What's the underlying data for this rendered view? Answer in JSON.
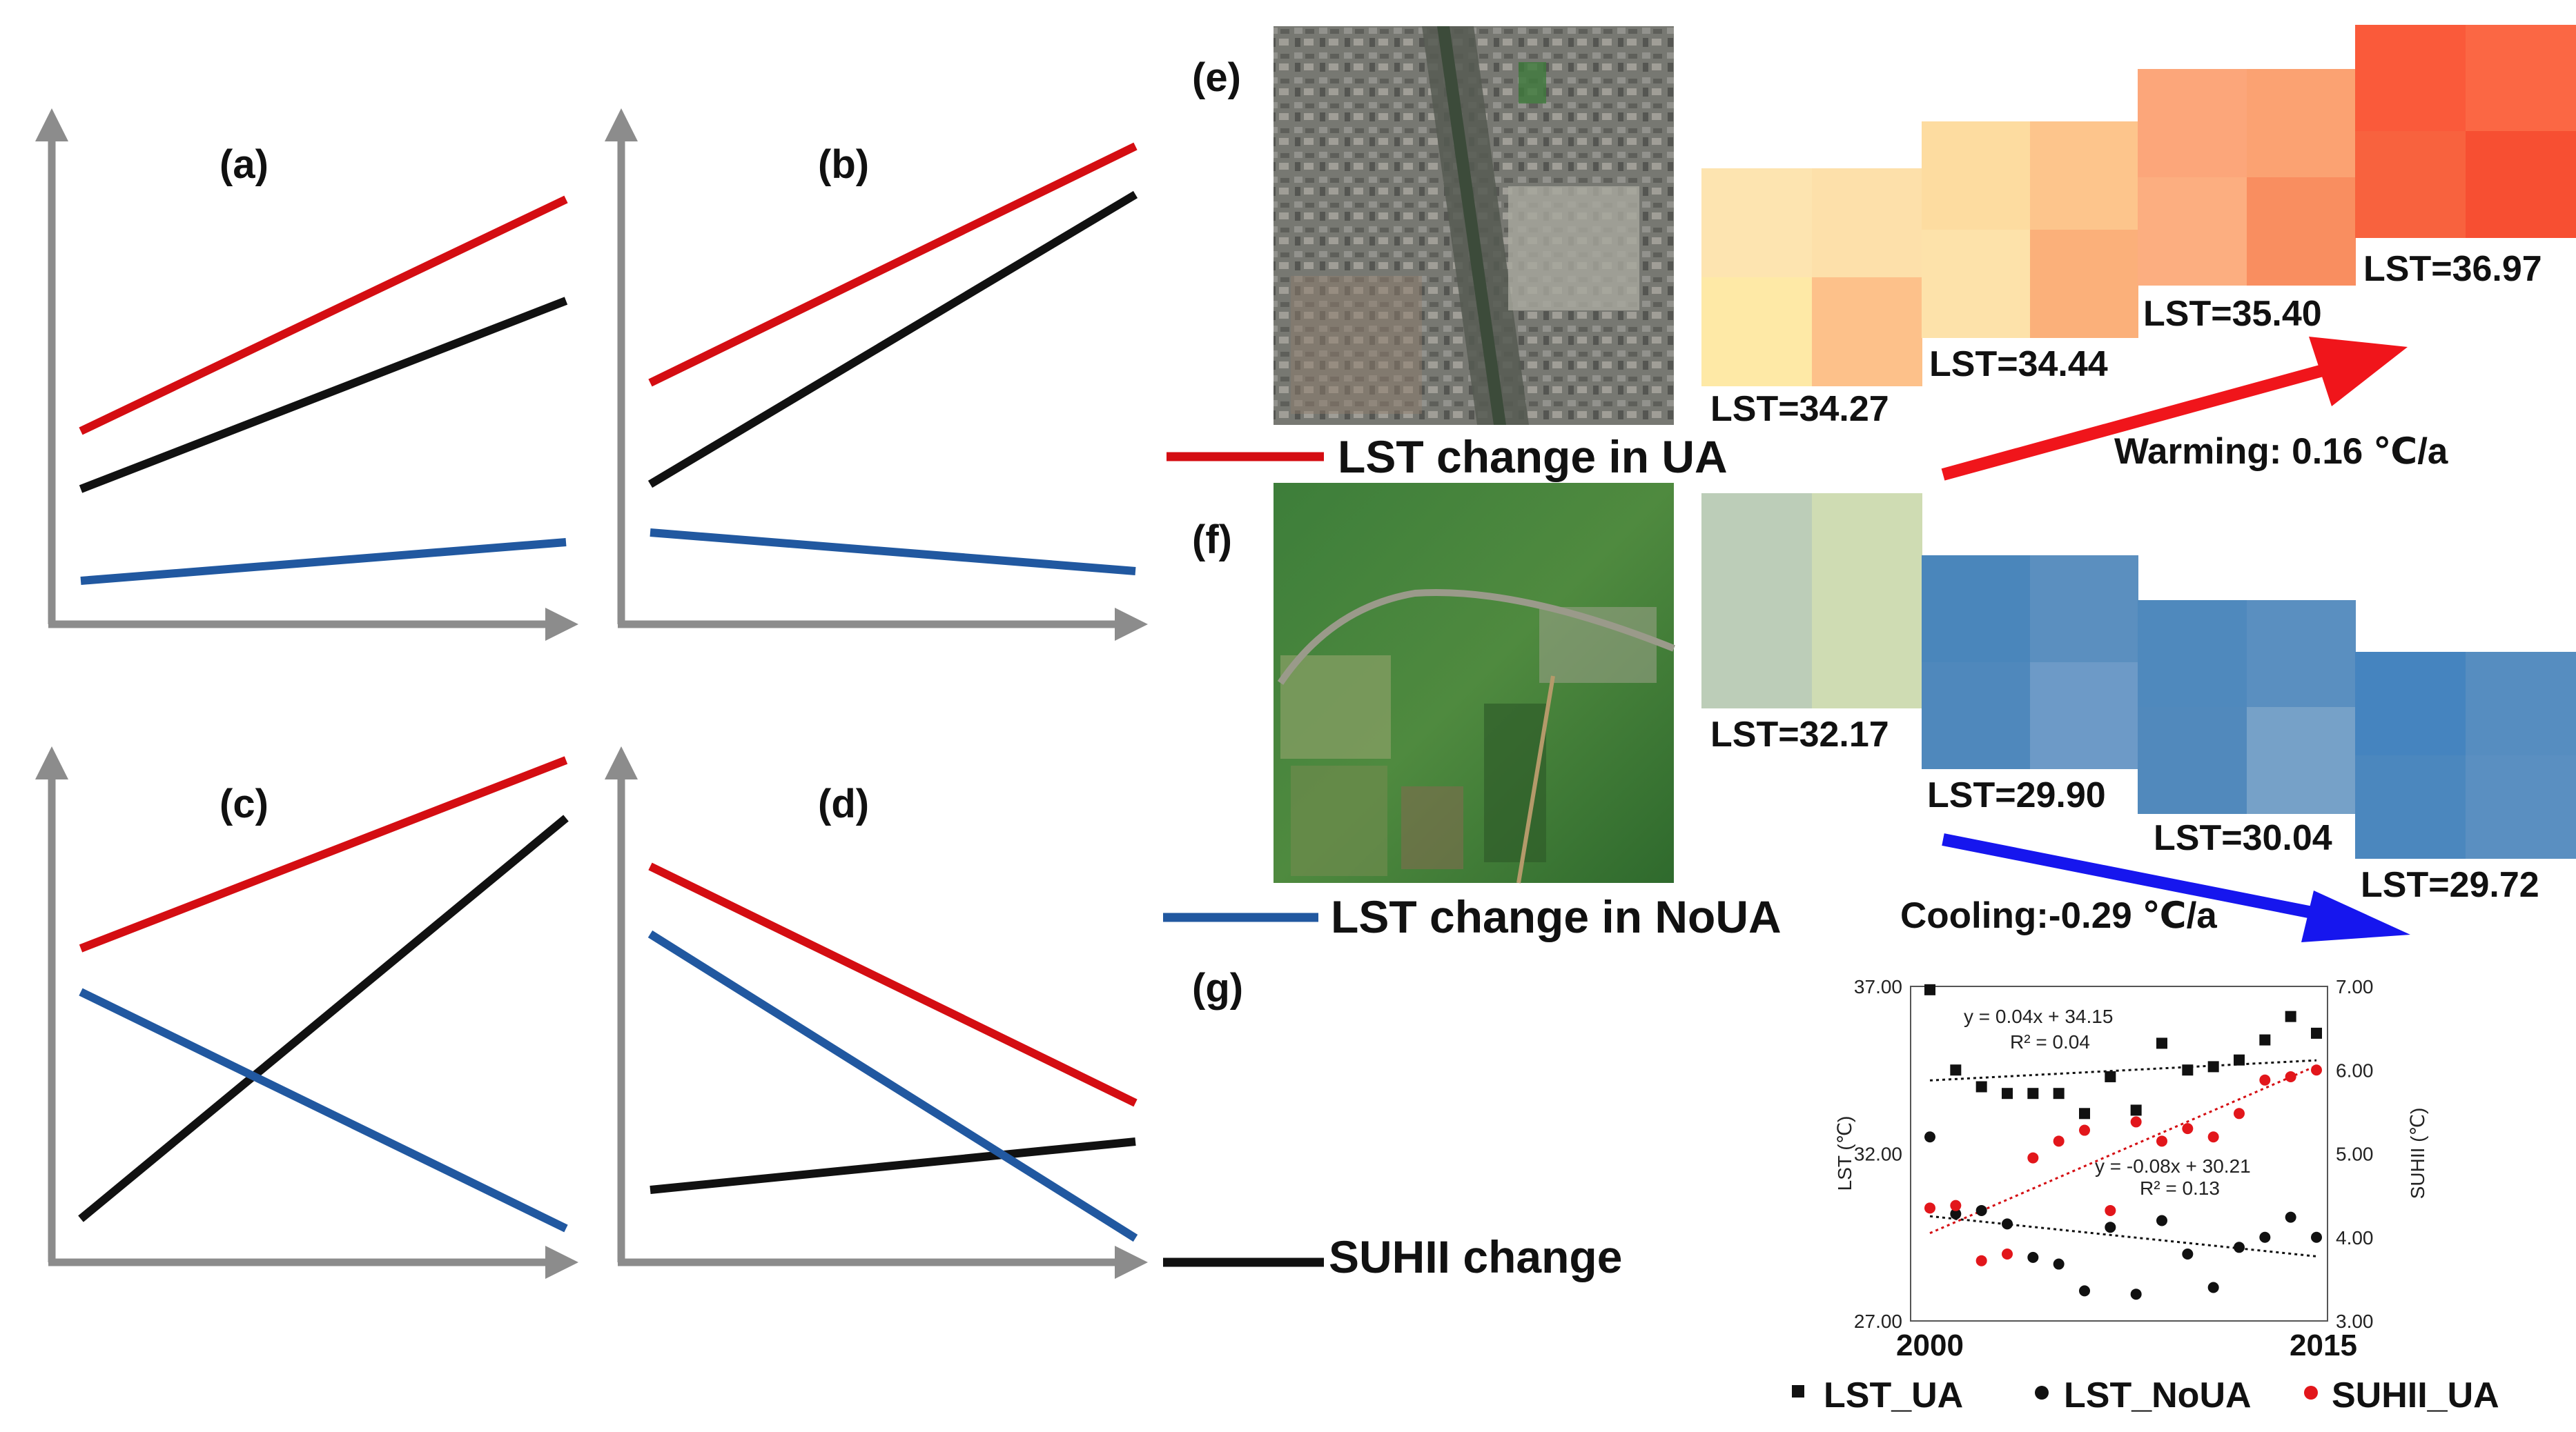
{
  "panels": {
    "a": {
      "label": "(a)"
    },
    "b": {
      "label": "(b)"
    },
    "c": {
      "label": "(c)"
    },
    "d": {
      "label": "(d)"
    },
    "e": {
      "label": "(e)"
    },
    "f": {
      "label": "(f)"
    },
    "g": {
      "label": "(g)"
    }
  },
  "colors": {
    "ua": "#d40d12",
    "suhii": "#111111",
    "noua": "#2158a0",
    "axis": "#8c8c8c",
    "warm_arrow": "#f0151b",
    "cool_arrow": "#1616ee"
  },
  "legend": {
    "ua": "LST change in UA",
    "noua": "LST change in NoUA",
    "suhii": "SUHII change"
  },
  "ua_series": {
    "lst_labels": [
      "LST=34.27",
      "LST=34.44",
      "LST=35.40",
      "LST=36.97"
    ],
    "trend_label": "Warming: 0.16 ℃/a"
  },
  "noua_series": {
    "lst_labels": [
      "LST=32.17",
      "LST=29.90",
      "LST=30.04",
      "LST=29.72"
    ],
    "trend_label": "Cooling:-0.29 ℃/a"
  },
  "chart_data": [
    {
      "type": "line",
      "title": "(a)",
      "x_range": [
        0,
        1
      ],
      "y_range": [
        0,
        1
      ],
      "series": [
        {
          "name": "LST change in UA",
          "x": [
            0,
            1
          ],
          "y": [
            0.4,
            0.88
          ]
        },
        {
          "name": "SUHII change",
          "x": [
            0,
            1
          ],
          "y": [
            0.28,
            0.67
          ]
        },
        {
          "name": "LST change in NoUA",
          "x": [
            0,
            1
          ],
          "y": [
            0.09,
            0.17
          ]
        }
      ]
    },
    {
      "type": "line",
      "title": "(b)",
      "x_range": [
        0,
        1
      ],
      "y_range": [
        0,
        1
      ],
      "series": [
        {
          "name": "LST change in UA",
          "x": [
            0,
            1
          ],
          "y": [
            0.5,
            0.99
          ]
        },
        {
          "name": "SUHII change",
          "x": [
            0,
            1
          ],
          "y": [
            0.29,
            0.89
          ]
        },
        {
          "name": "LST change in NoUA",
          "x": [
            0,
            1
          ],
          "y": [
            0.19,
            0.11
          ]
        }
      ]
    },
    {
      "type": "line",
      "title": "(c)",
      "x_range": [
        0,
        1
      ],
      "y_range": [
        0,
        1
      ],
      "series": [
        {
          "name": "LST change in UA",
          "x": [
            0,
            1
          ],
          "y": [
            0.65,
            1.04
          ]
        },
        {
          "name": "SUHII change",
          "x": [
            0,
            1
          ],
          "y": [
            0.09,
            0.92
          ]
        },
        {
          "name": "LST change in NoUA",
          "x": [
            0,
            1
          ],
          "y": [
            0.56,
            0.07
          ]
        }
      ]
    },
    {
      "type": "line",
      "title": "(d)",
      "x_range": [
        0,
        1
      ],
      "y_range": [
        0,
        1
      ],
      "series": [
        {
          "name": "LST change in UA",
          "x": [
            0,
            1
          ],
          "y": [
            0.82,
            0.33
          ]
        },
        {
          "name": "SUHII change",
          "x": [
            0,
            1
          ],
          "y": [
            0.15,
            0.25
          ]
        },
        {
          "name": "LST change in NoUA",
          "x": [
            0,
            1
          ],
          "y": [
            0.68,
            0.05
          ]
        }
      ]
    },
    {
      "type": "scatter",
      "title": "(g)",
      "ylabel": "LST (℃)",
      "y2label": "SUHII (℃)",
      "ylim": [
        27,
        37
      ],
      "y2lim": [
        3,
        7
      ],
      "xlim": [
        2000,
        2015
      ],
      "y_ticks": [
        "37.00",
        "32.00",
        "27.00"
      ],
      "y2_ticks": [
        "7.00",
        "6.00",
        "5.00",
        "4.00",
        "3.00"
      ],
      "x_tick_labels": [
        "2000",
        "2015"
      ],
      "series": [
        {
          "name": "LST_UA",
          "marker": "square",
          "x": [
            2000,
            2001,
            2002,
            2003,
            2004,
            2005,
            2006,
            2007,
            2008,
            2009,
            2010,
            2011,
            2012,
            2013,
            2014,
            2015
          ],
          "y": [
            36.9,
            34.5,
            34.0,
            33.8,
            33.8,
            33.8,
            33.2,
            34.3,
            33.3,
            35.3,
            34.5,
            34.6,
            34.8,
            35.4,
            36.1,
            35.6
          ],
          "trendline": {
            "slope": 0.04,
            "intercept": 34.15,
            "equation": "y = 0.04x + 34.15",
            "r2": "R² = 0.04"
          }
        },
        {
          "name": "LST_NoUA",
          "marker": "circle",
          "x": [
            2000,
            2001,
            2002,
            2003,
            2004,
            2005,
            2006,
            2007,
            2008,
            2009,
            2010,
            2011,
            2012,
            2013,
            2014,
            2015
          ],
          "y": [
            32.5,
            30.2,
            30.3,
            29.9,
            28.9,
            28.7,
            27.9,
            29.8,
            27.8,
            30.0,
            29.0,
            28.0,
            29.2,
            29.5,
            30.1,
            29.5
          ],
          "trendline": {
            "slope": -0.08,
            "intercept": 30.21,
            "equation": "y = -0.08x + 30.21",
            "r2": "R² = 0.13"
          }
        },
        {
          "name": "SUHII_UA",
          "axis": "y2",
          "marker": "circle",
          "x": [
            2000,
            2001,
            2002,
            2003,
            2004,
            2005,
            2006,
            2007,
            2008,
            2009,
            2010,
            2011,
            2012,
            2013,
            2014,
            2015
          ],
          "y": [
            4.35,
            4.38,
            3.72,
            3.8,
            4.95,
            5.15,
            5.28,
            4.32,
            5.38,
            5.15,
            5.3,
            5.2,
            5.48,
            5.88,
            5.92,
            6.0
          ]
        }
      ],
      "legend": [
        "LST_UA",
        "LST_NoUA",
        "SUHII_UA"
      ]
    }
  ]
}
